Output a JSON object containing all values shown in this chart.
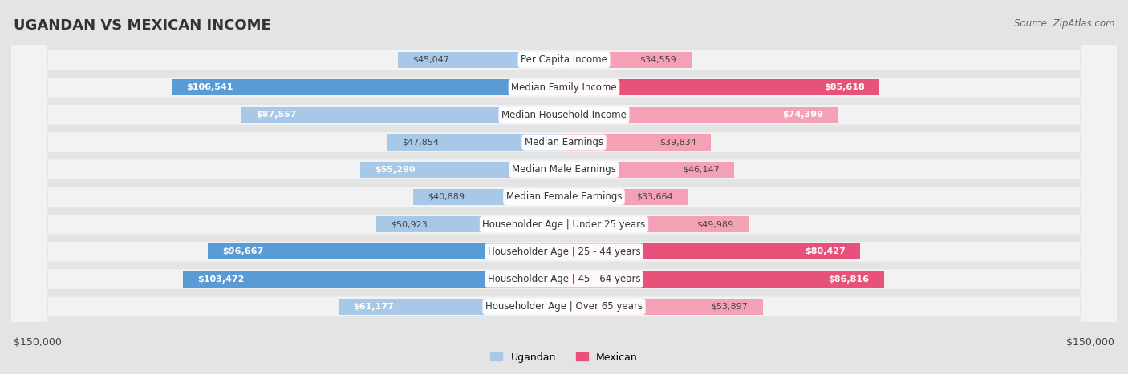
{
  "title": "UGANDAN VS MEXICAN INCOME",
  "source": "Source: ZipAtlas.com",
  "categories": [
    "Per Capita Income",
    "Median Family Income",
    "Median Household Income",
    "Median Earnings",
    "Median Male Earnings",
    "Median Female Earnings",
    "Householder Age | Under 25 years",
    "Householder Age | 25 - 44 years",
    "Householder Age | 45 - 64 years",
    "Householder Age | Over 65 years"
  ],
  "ugandan_values": [
    45047,
    106541,
    87557,
    47854,
    55290,
    40889,
    50923,
    96667,
    103472,
    61177
  ],
  "mexican_values": [
    34559,
    85618,
    74399,
    39834,
    46147,
    33664,
    49989,
    80427,
    86816,
    53897
  ],
  "ugandan_color_normal": "#a8c8e8",
  "ugandan_color_dark": "#5b9bd5",
  "mexican_color_normal": "#f4a0b5",
  "mexican_color_dark": "#e8527a",
  "ugandan_dark_rows": [
    1,
    7,
    8
  ],
  "mexican_dark_rows": [
    1,
    7,
    8
  ],
  "max_value": 150000,
  "xlabel_left": "$150,000",
  "xlabel_right": "$150,000",
  "legend_ugandan": "Ugandan",
  "legend_mexican": "Mexican",
  "bg_color": "#e4e4e4",
  "row_bg_color": "#f2f2f2",
  "title_color": "#333333",
  "label_color": "#555555"
}
